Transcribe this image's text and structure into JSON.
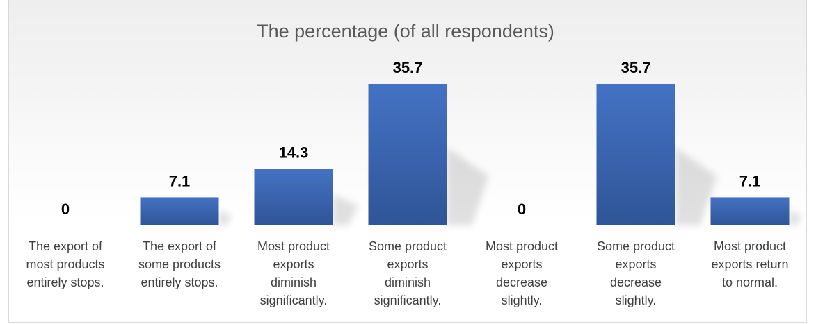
{
  "chart_data": {
    "type": "bar",
    "title": "The percentage (of all respondents)",
    "categories": [
      [
        "The export of",
        "most products",
        "entirely stops."
      ],
      [
        "The export of",
        "some products",
        "entirely stops."
      ],
      [
        "Most product",
        "exports",
        "diminish",
        "significantly."
      ],
      [
        "Some product",
        "exports",
        "diminish",
        "significantly."
      ],
      [
        "Most product",
        "exports",
        "decrease",
        "slightly."
      ],
      [
        "Some product",
        "exports",
        "decrease",
        "slightly."
      ],
      [
        "Most product",
        "exports return",
        "to normal."
      ]
    ],
    "values": [
      0,
      7.1,
      14.3,
      35.7,
      0,
      35.7,
      7.1
    ],
    "value_labels": [
      "0",
      "7.1",
      "14.3",
      "35.7",
      "0",
      "35.7",
      "7.1"
    ],
    "ylim": [
      0,
      35.7
    ],
    "bar_color": "#4472c4",
    "bar_color_dark": "#2f5597",
    "grid": false,
    "legend": "none"
  }
}
